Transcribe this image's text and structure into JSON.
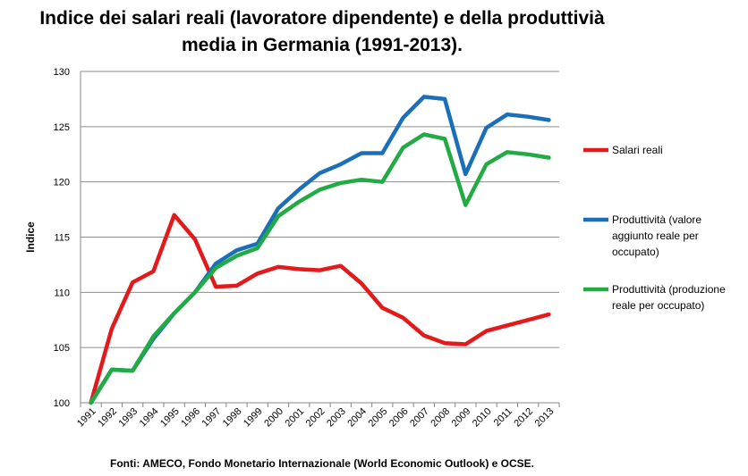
{
  "chart_data": {
    "type": "line",
    "title_lines": [
      "Indice dei salari reali (lavoratore dipendente) e della produttivià",
      "media in Germania (1991-2013)."
    ],
    "xlabel": "",
    "ylabel": "Indice",
    "ylim": [
      100,
      130
    ],
    "yticks": [
      100,
      105,
      110,
      115,
      120,
      125,
      130
    ],
    "grid": true,
    "legend_position": "right",
    "source": "Fonti: AMECO, Fondo Monetario Internazionale (World Economic Outlook) e OCSE.",
    "categories": [
      "1991",
      "1992",
      "1993",
      "1994",
      "1995",
      "1996",
      "1997",
      "1998",
      "1999",
      "2000",
      "2001",
      "2002",
      "2003",
      "2004",
      "2005",
      "2006",
      "2007",
      "2008",
      "2009",
      "2010",
      "2011",
      "2012",
      "2013"
    ],
    "series": [
      {
        "name": "Salari reali",
        "legend_lines": [
          "Salari reali"
        ],
        "color": "#e31a1c",
        "values": [
          100,
          106.7,
          110.9,
          111.9,
          117.0,
          114.8,
          110.5,
          110.6,
          111.7,
          112.3,
          112.1,
          112.0,
          112.4,
          110.8,
          108.6,
          107.7,
          106.1,
          105.4,
          105.3,
          106.5,
          107.0,
          107.5,
          108.0
        ]
      },
      {
        "name": "Produttività (valore aggiunto reale per occupato)",
        "legend_lines": [
          "Produttività (valore",
          "aggiunto reale per",
          "occupato)"
        ],
        "color": "#1a6fb8",
        "values": [
          100,
          103.0,
          102.9,
          105.8,
          108.1,
          110.0,
          112.6,
          113.8,
          114.4,
          117.6,
          119.3,
          120.8,
          121.6,
          122.6,
          122.6,
          125.8,
          127.7,
          127.5,
          120.7,
          124.9,
          126.1,
          125.9,
          125.6
        ]
      },
      {
        "name": "Produttività (produzione reale per occupato)",
        "legend_lines": [
          "Produttività (produzione",
          "reale per occupato)"
        ],
        "color": "#22aa44",
        "values": [
          100,
          103.0,
          102.9,
          106.0,
          108.1,
          110.0,
          112.2,
          113.3,
          114.0,
          116.9,
          118.2,
          119.3,
          119.9,
          120.2,
          120.0,
          123.1,
          124.3,
          123.9,
          117.9,
          121.6,
          122.7,
          122.5,
          122.2
        ]
      }
    ]
  }
}
